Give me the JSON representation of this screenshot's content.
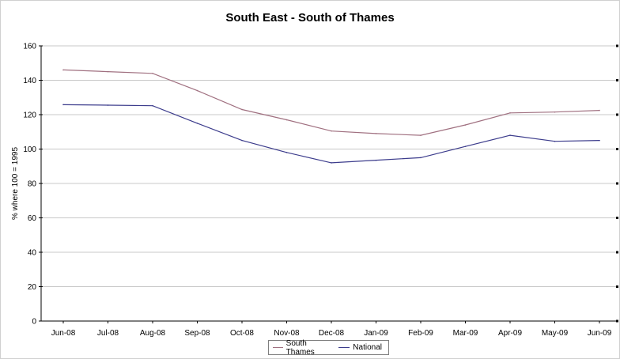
{
  "chart_data": {
    "type": "line",
    "title": "South East - South of Thames",
    "xlabel": "",
    "ylabel": "% where 100 = 1995",
    "ylim": [
      0,
      160
    ],
    "yticks": [
      0,
      20,
      40,
      60,
      80,
      100,
      120,
      140,
      160
    ],
    "grid": true,
    "legend_position": "bottom",
    "categories": [
      "Jun-08",
      "Jul-08",
      "Aug-08",
      "Sep-08",
      "Oct-08",
      "Nov-08",
      "Dec-08",
      "Jan-09",
      "Feb-09",
      "Mar-09",
      "Apr-09",
      "May-09",
      "Jun-09"
    ],
    "series": [
      {
        "name": "South Thames",
        "color": "#a07080",
        "values": [
          146,
          145,
          144,
          134,
          123,
          117,
          110.5,
          109,
          108,
          114,
          121,
          121.5,
          122.5
        ]
      },
      {
        "name": "National",
        "color": "#3c3c8c",
        "values": [
          125.8,
          125.5,
          125.2,
          115,
          105,
          98,
          92,
          93.5,
          95,
          101.5,
          108,
          104.5,
          105
        ]
      }
    ]
  }
}
